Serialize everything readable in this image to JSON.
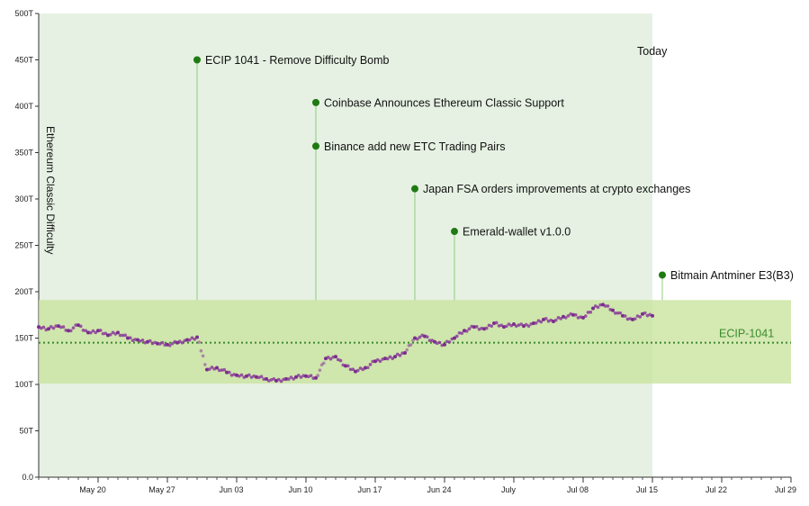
{
  "chart_data": {
    "type": "scatter",
    "ylabel": "Ethereum Classic Difficulty",
    "ylim": [
      0,
      500
    ],
    "yunit": "T",
    "xlim": [
      "2018-05-14",
      "2018-07-29"
    ],
    "x_ticks": [
      {
        "date": "2018-05-20",
        "label": "May 20"
      },
      {
        "date": "2018-05-27",
        "label": "May 27"
      },
      {
        "date": "2018-06-03",
        "label": "Jun 03"
      },
      {
        "date": "2018-06-10",
        "label": "Jun 10"
      },
      {
        "date": "2018-06-17",
        "label": "Jun 17"
      },
      {
        "date": "2018-06-24",
        "label": "Jun 24"
      },
      {
        "date": "2018-07-01",
        "label": "July"
      },
      {
        "date": "2018-07-08",
        "label": "Jul 08"
      },
      {
        "date": "2018-07-15",
        "label": "Jul 15"
      },
      {
        "date": "2018-07-22",
        "label": "Jul 22"
      },
      {
        "date": "2018-07-29",
        "label": "Jul 29"
      }
    ],
    "y_ticks": [
      {
        "value": 0,
        "label": "0.0"
      },
      {
        "value": 50,
        "label": "50T"
      },
      {
        "value": 100,
        "label": "100T"
      },
      {
        "value": 150,
        "label": "150T"
      },
      {
        "value": 200,
        "label": "200T"
      },
      {
        "value": 250,
        "label": "250T"
      },
      {
        "value": 300,
        "label": "300T"
      },
      {
        "value": 350,
        "label": "350T"
      },
      {
        "value": 400,
        "label": "400T"
      },
      {
        "value": 450,
        "label": "450T"
      },
      {
        "value": 500,
        "label": "500T"
      }
    ],
    "today": {
      "date": "2018-07-15",
      "label": "Today"
    },
    "band": {
      "low": 101,
      "high": 191
    },
    "ecip_line": {
      "value": 145,
      "label": "ECIP-1041"
    },
    "events": [
      {
        "date": "2018-05-30",
        "value": 450,
        "label": "ECIP 1041 - Remove Difficulty Bomb"
      },
      {
        "date": "2018-06-11",
        "value": 404,
        "label": "Coinbase Announces Ethereum Classic Support"
      },
      {
        "date": "2018-06-11",
        "value": 357,
        "label": "Binance add new ETC Trading Pairs"
      },
      {
        "date": "2018-06-21",
        "value": 311,
        "label": "Japan FSA orders improvements at crypto exchanges"
      },
      {
        "date": "2018-06-25",
        "value": 265,
        "label": "Emerald-wallet v1.0.0"
      },
      {
        "date": "2018-07-16",
        "value": 218,
        "label": "Bitmain Antminer E3(B3)"
      }
    ],
    "series": [
      {
        "values": [
          [
            "2018-05-14",
            162
          ],
          [
            "2018-05-15",
            160
          ],
          [
            "2018-05-16",
            163
          ],
          [
            "2018-05-17",
            158
          ],
          [
            "2018-05-18",
            164
          ],
          [
            "2018-05-19",
            156
          ],
          [
            "2018-05-20",
            158
          ],
          [
            "2018-05-21",
            153
          ],
          [
            "2018-05-22",
            156
          ],
          [
            "2018-05-23",
            150
          ],
          [
            "2018-05-24",
            148
          ],
          [
            "2018-05-25",
            146
          ],
          [
            "2018-05-26",
            144
          ],
          [
            "2018-05-27",
            143
          ],
          [
            "2018-05-28",
            145
          ],
          [
            "2018-05-29",
            148
          ],
          [
            "2018-05-30",
            151
          ],
          [
            "2018-05-31",
            116
          ],
          [
            "2018-06-01",
            118
          ],
          [
            "2018-06-02",
            113
          ],
          [
            "2018-06-03",
            110
          ],
          [
            "2018-06-04",
            109
          ],
          [
            "2018-06-05",
            108
          ],
          [
            "2018-06-06",
            106
          ],
          [
            "2018-06-07",
            104
          ],
          [
            "2018-06-08",
            106
          ],
          [
            "2018-06-09",
            108
          ],
          [
            "2018-06-10",
            109
          ],
          [
            "2018-06-11",
            107
          ],
          [
            "2018-06-12",
            128
          ],
          [
            "2018-06-13",
            130
          ],
          [
            "2018-06-14",
            120
          ],
          [
            "2018-06-15",
            114
          ],
          [
            "2018-06-16",
            118
          ],
          [
            "2018-06-17",
            125
          ],
          [
            "2018-06-18",
            128
          ],
          [
            "2018-06-19",
            130
          ],
          [
            "2018-06-20",
            134
          ],
          [
            "2018-06-21",
            150
          ],
          [
            "2018-06-22",
            152
          ],
          [
            "2018-06-23",
            146
          ],
          [
            "2018-06-24",
            143
          ],
          [
            "2018-06-25",
            150
          ],
          [
            "2018-06-26",
            158
          ],
          [
            "2018-06-27",
            162
          ],
          [
            "2018-06-28",
            160
          ],
          [
            "2018-06-29",
            166
          ],
          [
            "2018-06-30",
            162
          ],
          [
            "2018-07-01",
            165
          ],
          [
            "2018-07-02",
            163
          ],
          [
            "2018-07-03",
            166
          ],
          [
            "2018-07-04",
            170
          ],
          [
            "2018-07-05",
            168
          ],
          [
            "2018-07-06",
            173
          ],
          [
            "2018-07-07",
            175
          ],
          [
            "2018-07-08",
            172
          ],
          [
            "2018-07-09",
            182
          ],
          [
            "2018-07-10",
            186
          ],
          [
            "2018-07-11",
            180
          ],
          [
            "2018-07-12",
            174
          ],
          [
            "2018-07-13",
            170
          ],
          [
            "2018-07-14",
            176
          ],
          [
            "2018-07-15",
            174
          ]
        ]
      }
    ]
  }
}
